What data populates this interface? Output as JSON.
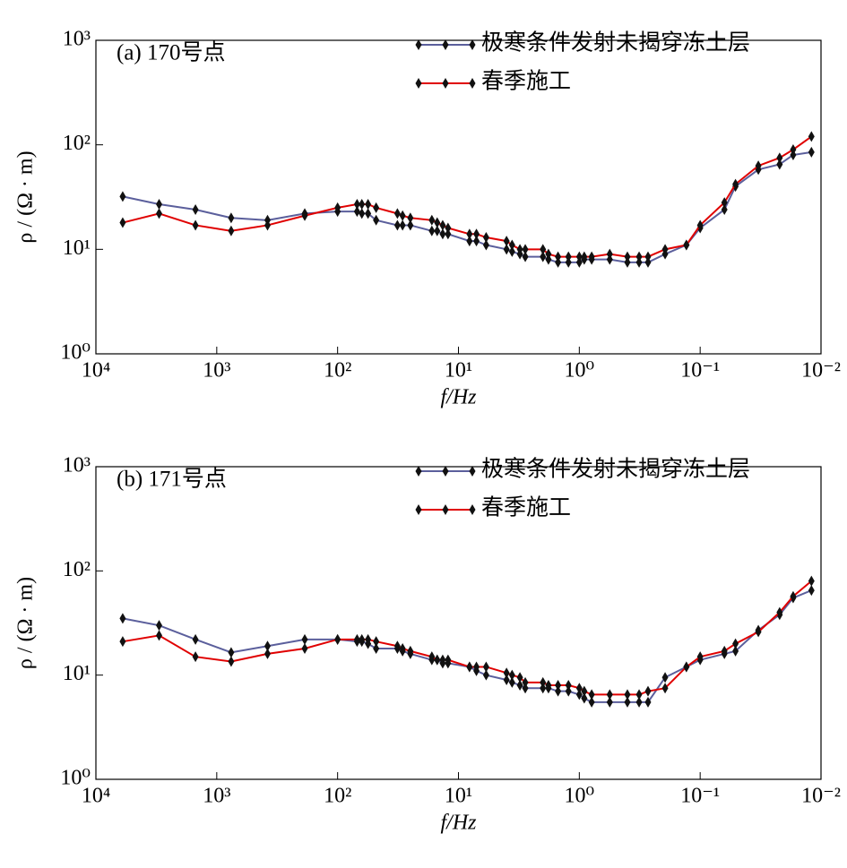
{
  "chart_data": [
    {
      "type": "line",
      "title": "(a) 170号点",
      "xlabel": "f/Hz",
      "ylabel": "ρ / (Ω · m)",
      "xlog": true,
      "ylog": true,
      "legend": "upper right",
      "xlim": [
        10000,
        0.01
      ],
      "ylim": [
        1,
        1000
      ],
      "xticks": [
        {
          "value": 10000,
          "label": "10⁴"
        },
        {
          "value": 1000,
          "label": "10³"
        },
        {
          "value": 100,
          "label": "10²"
        },
        {
          "value": 10,
          "label": "10¹"
        },
        {
          "value": 1,
          "label": "10⁰"
        },
        {
          "value": 0.1,
          "label": "10⁻¹"
        },
        {
          "value": 0.01,
          "label": "10⁻²"
        }
      ],
      "yticks": [
        {
          "value": 1,
          "label": "10⁰"
        },
        {
          "value": 10,
          "label": "10¹"
        },
        {
          "value": 100,
          "label": "10²"
        },
        {
          "value": 1000,
          "label": "10³"
        }
      ],
      "x": [
        6000,
        3000,
        1500,
        760,
        380,
        187,
        100,
        69,
        63,
        56,
        48,
        32,
        29,
        25,
        16.6,
        15,
        13.5,
        12.2,
        8.1,
        7.1,
        5.9,
        4,
        3.6,
        3.1,
        2.8,
        2,
        1.8,
        1.5,
        1.23,
        1,
        0.91,
        0.79,
        0.56,
        0.4,
        0.32,
        0.27,
        0.195,
        0.13,
        0.1,
        0.063,
        0.051,
        0.033,
        0.022,
        0.017,
        0.012
      ],
      "series": [
        {
          "name": "极寒条件发射未揭穿冻土层",
          "color": "#5b5f9c",
          "values": [
            32,
            27,
            24,
            20,
            19,
            22,
            23,
            23,
            22,
            22,
            19,
            17,
            17,
            17,
            15,
            15,
            14,
            14,
            12,
            12,
            11,
            10,
            9.5,
            9,
            8.5,
            8.5,
            8,
            7.5,
            7.5,
            7.5,
            8,
            8,
            8,
            7.5,
            7.5,
            7.5,
            9,
            11,
            16,
            24,
            40,
            58,
            65,
            80,
            85
          ]
        },
        {
          "name": "春季施工",
          "color": "#e00000",
          "values": [
            18,
            22,
            17,
            15,
            17,
            21,
            25,
            27,
            27,
            27,
            25,
            22,
            21,
            20,
            19,
            18,
            17,
            16,
            14,
            14,
            13,
            12,
            11,
            10,
            10,
            10,
            9,
            8.5,
            8.5,
            8.5,
            8.5,
            8.5,
            9,
            8.5,
            8.5,
            8.5,
            10,
            11,
            17,
            28,
            42,
            63,
            75,
            90,
            120
          ]
        }
      ]
    },
    {
      "type": "line",
      "title": "(b) 171号点",
      "xlabel": "f/Hz",
      "ylabel": "ρ / (Ω · m)",
      "xlog": true,
      "ylog": true,
      "legend": "upper right",
      "xlim": [
        10000,
        0.01
      ],
      "ylim": [
        1,
        1000
      ],
      "xticks": [
        {
          "value": 10000,
          "label": "10⁴"
        },
        {
          "value": 1000,
          "label": "10³"
        },
        {
          "value": 100,
          "label": "10²"
        },
        {
          "value": 10,
          "label": "10¹"
        },
        {
          "value": 1,
          "label": "10⁰"
        },
        {
          "value": 0.1,
          "label": "10⁻¹"
        },
        {
          "value": 0.01,
          "label": "10⁻²"
        }
      ],
      "yticks": [
        {
          "value": 1,
          "label": "10⁰"
        },
        {
          "value": 10,
          "label": "10¹"
        },
        {
          "value": 100,
          "label": "10²"
        },
        {
          "value": 1000,
          "label": "10³"
        }
      ],
      "x": [
        6000,
        3000,
        1500,
        760,
        380,
        187,
        100,
        69,
        63,
        56,
        48,
        32,
        29,
        25,
        16.6,
        15,
        13.5,
        12.2,
        8.1,
        7.1,
        5.9,
        4,
        3.6,
        3.1,
        2.8,
        2,
        1.8,
        1.5,
        1.23,
        1,
        0.91,
        0.79,
        0.56,
        0.4,
        0.32,
        0.27,
        0.195,
        0.13,
        0.1,
        0.063,
        0.051,
        0.033,
        0.022,
        0.017,
        0.012
      ],
      "series": [
        {
          "name": "极寒条件发射未揭穿冻土层",
          "color": "#5b5f9c",
          "values": [
            35,
            30,
            22,
            16.5,
            19,
            22,
            22,
            21,
            21,
            20,
            18,
            18,
            17,
            16,
            14,
            14,
            13,
            13,
            12,
            11,
            10,
            9,
            8.5,
            8,
            7.5,
            7.5,
            7.5,
            7,
            7,
            6.5,
            6,
            5.5,
            5.5,
            5.5,
            5.5,
            5.5,
            9.5,
            12,
            14,
            16,
            17,
            27,
            38,
            55,
            65
          ]
        },
        {
          "name": "春季施工",
          "color": "#e00000",
          "values": [
            21,
            24,
            15,
            13.5,
            16,
            18,
            22,
            22,
            22,
            22,
            21,
            19,
            18,
            17,
            15,
            14,
            14,
            14,
            12,
            12,
            12,
            10.5,
            10,
            9.5,
            8.5,
            8.5,
            8,
            8,
            8,
            7.5,
            7,
            6.5,
            6.5,
            6.5,
            6.5,
            7,
            7.5,
            12,
            15,
            17,
            20,
            26,
            40,
            57,
            80
          ]
        }
      ]
    }
  ]
}
